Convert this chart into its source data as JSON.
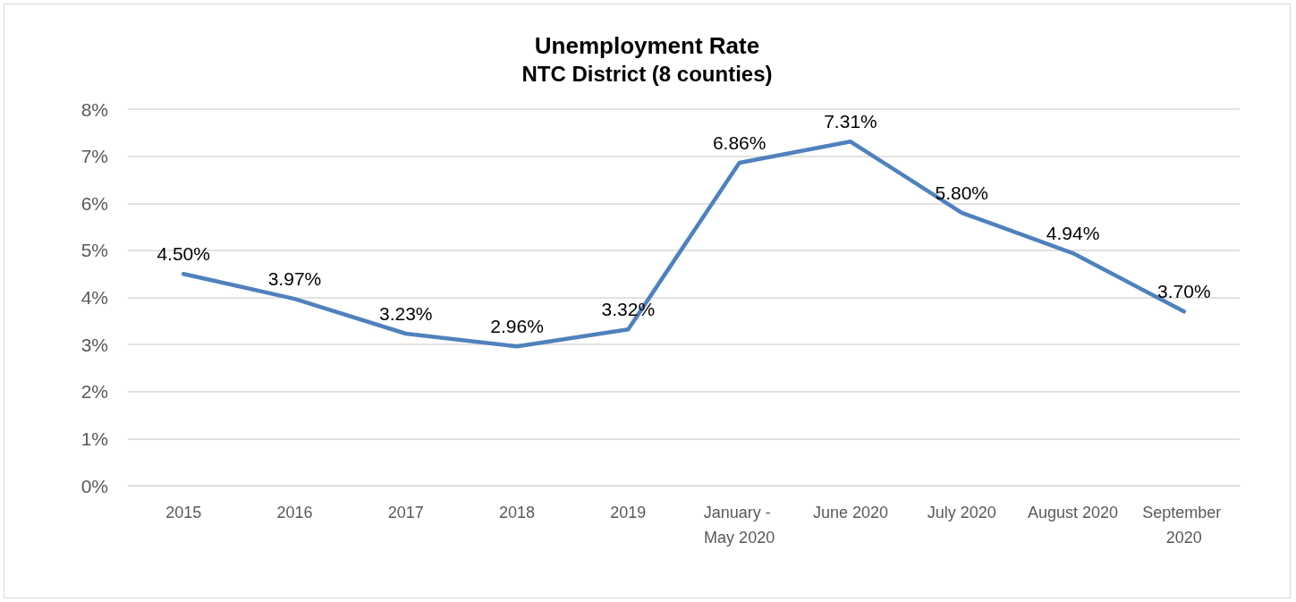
{
  "chart_data": {
    "type": "line",
    "title": "Unemployment Rate",
    "subtitle": "NTC District (8 counties)",
    "categories": [
      "2015",
      "2016",
      "2017",
      "2018",
      "2019",
      "January - May 2020",
      "June 2020",
      "July 2020",
      "August 2020",
      "September 2020"
    ],
    "series": [
      {
        "color": "#4f81bd",
        "values": [
          4.5,
          3.97,
          3.23,
          2.96,
          3.32,
          6.86,
          7.31,
          5.8,
          4.94,
          3.7
        ],
        "value_labels": [
          "4.50%",
          "3.97%",
          "3.23%",
          "2.96%",
          "3.32%",
          "6.86%",
          "7.31%",
          "5.80%",
          "4.94%",
          "3.70%"
        ]
      }
    ],
    "ylim": [
      0,
      8
    ],
    "yticks": [
      {
        "value": 0,
        "label": "0%"
      },
      {
        "value": 1,
        "label": "1%"
      },
      {
        "value": 2,
        "label": "2%"
      },
      {
        "value": 3,
        "label": "3%"
      },
      {
        "value": 4,
        "label": "4%"
      },
      {
        "value": 5,
        "label": "5%"
      },
      {
        "value": 6,
        "label": "6%"
      },
      {
        "value": 7,
        "label": "7%"
      },
      {
        "value": 8,
        "label": "8%"
      }
    ],
    "grid": "y",
    "marker": "none",
    "line_style": "solid"
  }
}
